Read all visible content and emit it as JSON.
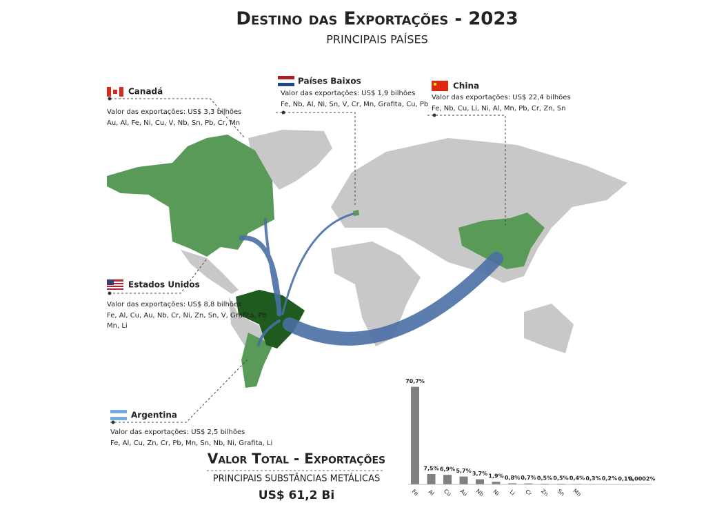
{
  "title": "Destino das Exportações - 2023",
  "subtitle": "PRINCIPAIS PAÍSES",
  "countries": [
    {
      "name": "Canadá",
      "value": "Valor das exportações: US$ 3,3 bilhões",
      "substances": [
        "Au, Al, Fe, Ni, Cu, V, Nb, Sn, Pb, Cr, Mn"
      ]
    },
    {
      "name": "Países Baixos",
      "value": "Valor das exportações: US$ 1,9 bilhões",
      "substances": [
        "Fe, Nb, Al, Ni, Sn, V, Cr, Mn, Grafita, Cu, Pb"
      ]
    },
    {
      "name": "China",
      "value": "Valor das exportações: US$ 22,4 bilhões",
      "substances": [
        "Fe, Nb, Cu, Li, Ni, Al, Mn, Pb, Cr, Zn, Sn"
      ]
    },
    {
      "name": "Estados Unidos",
      "value": "Valor das exportações: US$ 8,8 bilhões",
      "substances": [
        "Fe, Al, Cu, Au, Nb, Cr, Ni, Zn, Sn, V, Grafita, Pb",
        "Mn,  Li"
      ]
    },
    {
      "name": "Argentina",
      "value": "Valor das exportações: US$ 2,5 bilhões",
      "substances": [
        "Fe, Al, Cu, Zn, Cr, Pb, Mn, Sn, Nb, Ni, Grafita, Li"
      ]
    }
  ],
  "summary": {
    "title": "Valor Total - Exportações",
    "subtitle": "PRINCIPAIS SUBSTÂNCIAS METÁLICAS",
    "total": "US$ 61,2 Bi"
  },
  "chart_data": {
    "type": "bar",
    "categories": [
      "Fe",
      "Al",
      "Cu",
      "Au",
      "Nb",
      "Ni",
      "Li",
      "Cr",
      "Zn",
      "Sn",
      "Mn",
      null,
      null,
      null,
      null
    ],
    "values": [
      70.7,
      7.5,
      6.9,
      5.7,
      3.7,
      1.9,
      0.8,
      0.7,
      0.5,
      0.5,
      0.4,
      0.3,
      0.2,
      0.1,
      0.0002
    ],
    "value_labels": [
      "70,7%",
      "7,5%",
      "6,9%",
      "5,7%",
      "3,7%",
      "1,9%",
      "0,8%",
      "0,7%",
      "0,5%",
      "0,5%",
      "0,4%",
      "0,3%",
      "0,2%",
      "0,1%",
      "0,0002%"
    ],
    "color": "#808080"
  }
}
